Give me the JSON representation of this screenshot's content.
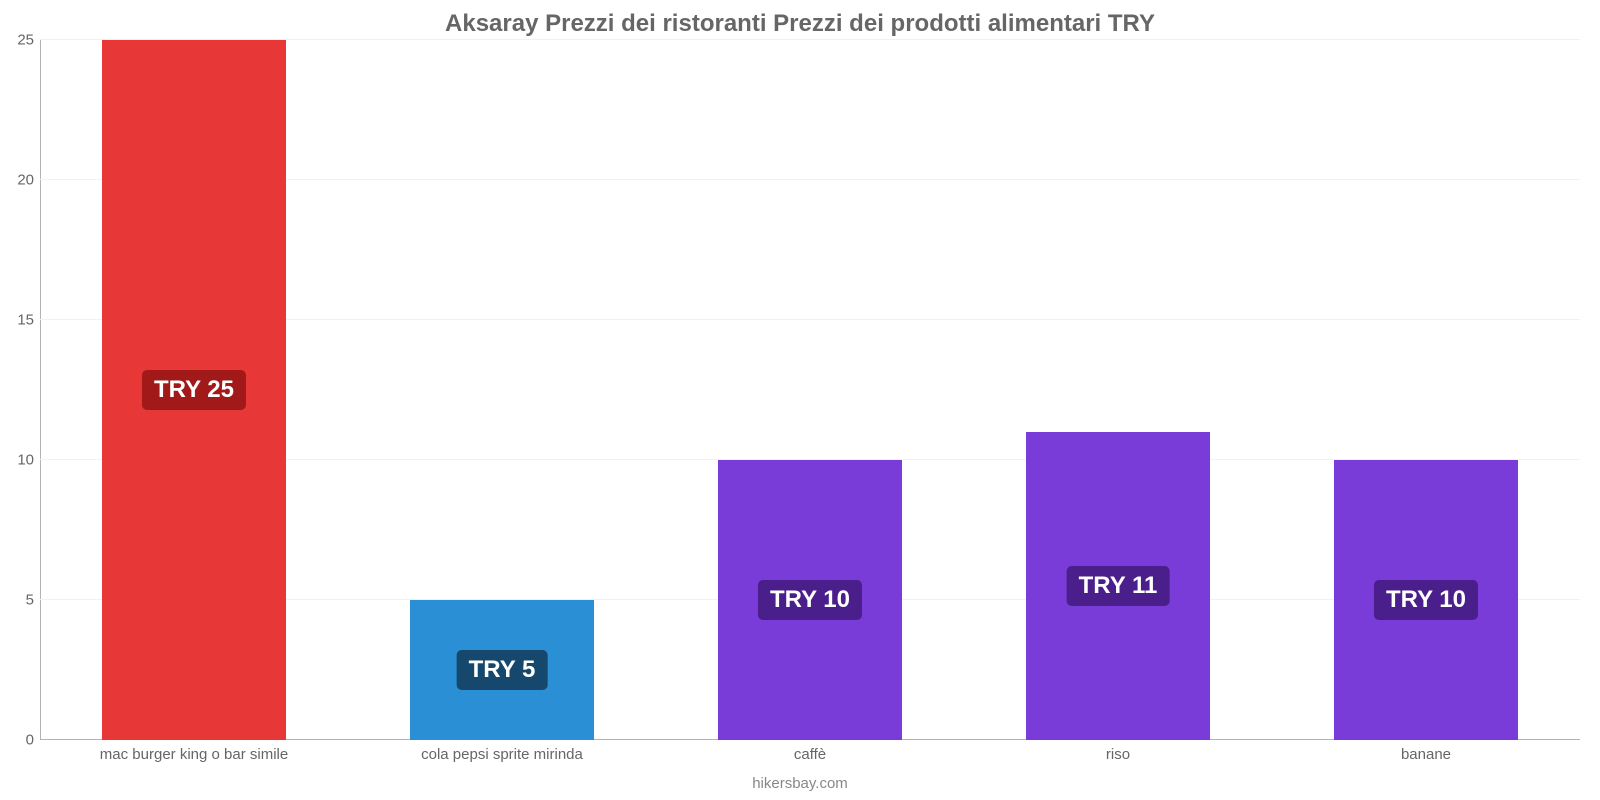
{
  "chart": {
    "type": "bar",
    "title": "Aksaray Prezzi dei ristoranti Prezzi dei prodotti alimentari TRY",
    "title_color": "#666666",
    "title_fontsize": 24,
    "background_color": "#ffffff",
    "grid_color": "#f2f2f2",
    "axis_color": "#b3b3b3",
    "ylim_min": 0,
    "ylim_max": 25,
    "ytick_step": 5,
    "ytick_fontsize": 15,
    "ytick_color": "#666666",
    "bar_width": 0.6,
    "value_label_prefix": "TRY ",
    "value_label_fontsize": 24,
    "xlabel_fontsize": 15,
    "xlabel_color": "#666666",
    "categories": [
      "mac burger king o bar simile",
      "cola pepsi sprite mirinda",
      "caffè",
      "riso",
      "banane"
    ],
    "values": [
      25,
      5,
      10,
      11,
      10
    ],
    "bar_colors": [
      "#e83737",
      "#2a8fd4",
      "#7a3cd9",
      "#7a3cd9",
      "#7a3cd9"
    ],
    "label_bg_colors": [
      "#a11919",
      "#15486c",
      "#4a1e8b",
      "#4a1e8b",
      "#4a1e8b"
    ],
    "attribution": "hikersbay.com",
    "attribution_color": "#888888",
    "attribution_fontsize": 15
  }
}
